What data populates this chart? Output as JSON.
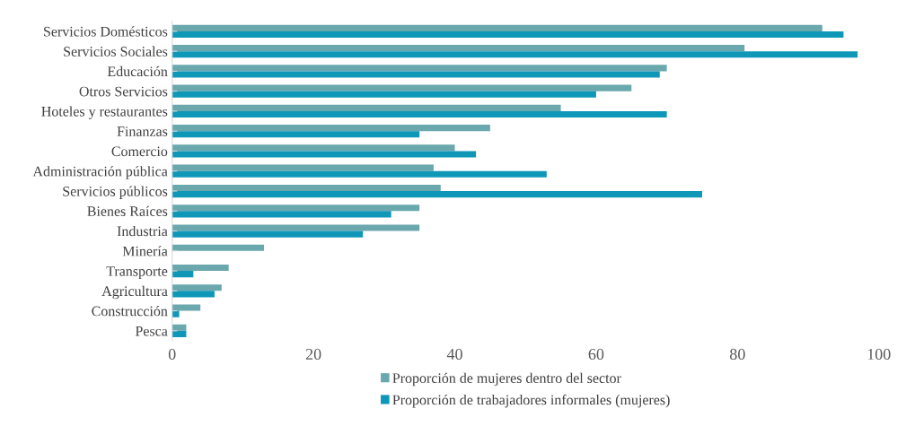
{
  "chart_data": {
    "type": "bar",
    "orientation": "horizontal",
    "categories": [
      "Servicios Domésticos",
      "Servicios Sociales",
      "Educación",
      "Otros Servicios",
      "Hoteles y restaurantes",
      "Finanzas",
      "Comercio",
      "Administración pública",
      "Servicios públicos",
      "Bienes Raíces",
      "Industria",
      "Minería",
      "Transporte",
      "Agricultura",
      "Construcción",
      "Pesca"
    ],
    "series": [
      {
        "name": "Proporción de mujeres dentro del sector",
        "color": "#6aa8ae",
        "values": [
          92,
          81,
          70,
          65,
          55,
          45,
          40,
          37,
          38,
          35,
          35,
          13,
          8,
          7,
          4,
          2
        ]
      },
      {
        "name": "Proporción de trabajadores informales (mujeres)",
        "color": "#0f97b8",
        "values": [
          95,
          97,
          69,
          60,
          70,
          35,
          43,
          53,
          75,
          31,
          27,
          null,
          3,
          6,
          1,
          2
        ]
      }
    ],
    "xlim": [
      0,
      100
    ],
    "xticks": [
      0,
      20,
      40,
      60,
      80,
      100
    ],
    "grid": false,
    "legend": "bottom"
  }
}
